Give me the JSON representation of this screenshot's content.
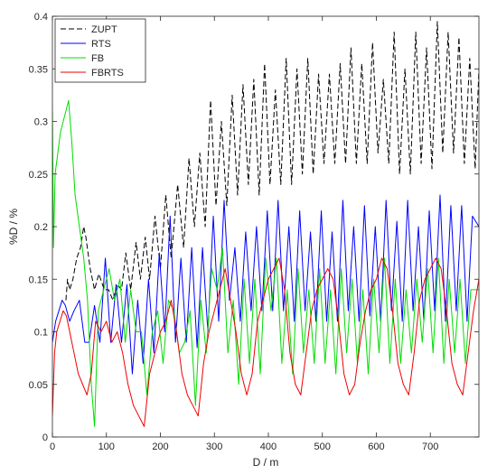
{
  "chart_data": {
    "type": "line",
    "title": "",
    "xlabel": "D / m",
    "ylabel": "%D / %",
    "xlim": [
      0,
      790
    ],
    "ylim": [
      0,
      0.4
    ],
    "x_ticks": [
      0,
      100,
      200,
      300,
      400,
      500,
      600,
      700
    ],
    "x_tick_labels": [
      "0",
      "100",
      "200",
      "300",
      "400",
      "500",
      "600",
      "700"
    ],
    "y_ticks": [
      0,
      0.05,
      0.1,
      0.15,
      0.2,
      0.25,
      0.3,
      0.35,
      0.4
    ],
    "y_tick_labels": [
      "0",
      "0.05",
      "0.1",
      "0.15",
      "0.2",
      "0.25",
      "0.3",
      "0.35",
      "0.4"
    ],
    "grid": false,
    "legend_position": "top-left",
    "series": [
      {
        "name": "ZUPT",
        "color": "#000000",
        "dash": "dashed",
        "x": [
          25,
          28,
          32,
          38,
          45,
          52,
          58,
          62,
          70,
          78,
          86,
          96,
          104,
          112,
          120,
          128,
          136,
          145,
          155,
          163,
          172,
          180,
          190,
          200,
          210,
          220,
          232,
          243,
          253,
          263,
          273,
          283,
          293,
          303,
          313,
          323,
          333,
          343,
          353,
          363,
          373,
          383,
          393,
          403,
          413,
          423,
          433,
          443,
          453,
          463,
          473,
          483,
          493,
          503,
          513,
          523,
          533,
          543,
          553,
          563,
          573,
          583,
          593,
          603,
          613,
          623,
          633,
          643,
          653,
          663,
          673,
          683,
          693,
          703,
          713,
          723,
          733,
          743,
          753,
          763,
          773,
          783,
          790
        ],
        "y": [
          0.13,
          0.15,
          0.14,
          0.15,
          0.17,
          0.18,
          0.2,
          0.19,
          0.16,
          0.14,
          0.155,
          0.14,
          0.14,
          0.13,
          0.145,
          0.14,
          0.175,
          0.14,
          0.185,
          0.15,
          0.19,
          0.15,
          0.21,
          0.16,
          0.23,
          0.17,
          0.24,
          0.18,
          0.265,
          0.2,
          0.27,
          0.2,
          0.32,
          0.22,
          0.3,
          0.22,
          0.325,
          0.23,
          0.335,
          0.24,
          0.34,
          0.23,
          0.355,
          0.24,
          0.33,
          0.24,
          0.36,
          0.24,
          0.35,
          0.25,
          0.36,
          0.25,
          0.345,
          0.26,
          0.345,
          0.26,
          0.355,
          0.26,
          0.37,
          0.26,
          0.355,
          0.26,
          0.375,
          0.27,
          0.34,
          0.26,
          0.385,
          0.25,
          0.35,
          0.25,
          0.385,
          0.26,
          0.37,
          0.255,
          0.395,
          0.27,
          0.385,
          0.27,
          0.38,
          0.26,
          0.36,
          0.255,
          0.35
        ]
      },
      {
        "name": "RTS",
        "color": "#0000ff",
        "dash": "solid",
        "x": [
          0,
          6,
          12,
          18,
          24,
          32,
          40,
          50,
          60,
          68,
          78,
          88,
          98,
          108,
          118,
          128,
          138,
          148,
          158,
          168,
          178,
          188,
          198,
          208,
          218,
          228,
          238,
          248,
          258,
          268,
          278,
          288,
          298,
          308,
          318,
          328,
          338,
          348,
          358,
          368,
          378,
          388,
          398,
          408,
          418,
          428,
          438,
          448,
          458,
          468,
          478,
          488,
          498,
          508,
          518,
          528,
          538,
          548,
          558,
          568,
          578,
          588,
          598,
          608,
          618,
          628,
          638,
          648,
          658,
          668,
          678,
          688,
          698,
          708,
          718,
          728,
          738,
          748,
          758,
          768,
          778,
          790
        ],
        "y": [
          0.09,
          0.11,
          0.12,
          0.13,
          0.125,
          0.11,
          0.12,
          0.13,
          0.09,
          0.09,
          0.125,
          0.09,
          0.17,
          0.09,
          0.145,
          0.09,
          0.145,
          0.06,
          0.13,
          0.07,
          0.15,
          0.08,
          0.175,
          0.1,
          0.21,
          0.09,
          0.17,
          0.09,
          0.18,
          0.085,
          0.18,
          0.1,
          0.21,
          0.11,
          0.225,
          0.13,
          0.18,
          0.11,
          0.195,
          0.12,
          0.2,
          0.12,
          0.215,
          0.12,
          0.225,
          0.12,
          0.2,
          0.11,
          0.215,
          0.12,
          0.195,
          0.11,
          0.215,
          0.11,
          0.195,
          0.11,
          0.225,
          0.12,
          0.2,
          0.11,
          0.22,
          0.115,
          0.2,
          0.11,
          0.225,
          0.12,
          0.205,
          0.11,
          0.225,
          0.12,
          0.2,
          0.11,
          0.215,
          0.12,
          0.23,
          0.11,
          0.22,
          0.12,
          0.22,
          0.11,
          0.21,
          0.2
        ]
      },
      {
        "name": "FB",
        "color": "#00dd00",
        "dash": "solid",
        "x": [
          0,
          2,
          5,
          10,
          15,
          20,
          25,
          30,
          36,
          42,
          50,
          58,
          65,
          72,
          78,
          85,
          95,
          105,
          115,
          125,
          135,
          145,
          155,
          165,
          175,
          185,
          195,
          205,
          215,
          225,
          235,
          245,
          255,
          265,
          275,
          285,
          295,
          305,
          315,
          325,
          335,
          345,
          355,
          365,
          375,
          385,
          395,
          405,
          415,
          425,
          435,
          445,
          455,
          465,
          475,
          485,
          495,
          505,
          515,
          525,
          535,
          545,
          555,
          565,
          575,
          585,
          595,
          605,
          615,
          625,
          635,
          645,
          655,
          665,
          675,
          685,
          695,
          705,
          715,
          725,
          735,
          745,
          755,
          765,
          775,
          790
        ],
        "y": [
          0.31,
          0.18,
          0.25,
          0.27,
          0.29,
          0.3,
          0.31,
          0.32,
          0.28,
          0.23,
          0.2,
          0.17,
          0.13,
          0.05,
          0.01,
          0.12,
          0.14,
          0.16,
          0.13,
          0.15,
          0.09,
          0.14,
          0.1,
          0.1,
          0.04,
          0.1,
          0.12,
          0.07,
          0.13,
          0.12,
          0.08,
          0.09,
          0.12,
          0.03,
          0.13,
          0.08,
          0.16,
          0.14,
          0.18,
          0.08,
          0.13,
          0.05,
          0.15,
          0.07,
          0.15,
          0.06,
          0.17,
          0.12,
          0.17,
          0.07,
          0.14,
          0.06,
          0.16,
          0.08,
          0.14,
          0.07,
          0.16,
          0.07,
          0.14,
          0.06,
          0.16,
          0.08,
          0.15,
          0.07,
          0.14,
          0.06,
          0.15,
          0.08,
          0.17,
          0.07,
          0.15,
          0.07,
          0.14,
          0.08,
          0.15,
          0.09,
          0.16,
          0.08,
          0.17,
          0.07,
          0.15,
          0.08,
          0.15,
          0.07,
          0.14,
          0.14
        ]
      },
      {
        "name": "FBRTS",
        "color": "#ee0000",
        "dash": "solid",
        "x": [
          0,
          4,
          8,
          14,
          20,
          26,
          32,
          40,
          48,
          56,
          64,
          72,
          80,
          90,
          100,
          110,
          120,
          130,
          140,
          150,
          160,
          170,
          180,
          190,
          200,
          210,
          220,
          230,
          240,
          250,
          260,
          270,
          280,
          290,
          300,
          310,
          320,
          330,
          340,
          350,
          360,
          370,
          380,
          390,
          400,
          410,
          420,
          430,
          440,
          450,
          460,
          470,
          480,
          490,
          500,
          510,
          520,
          530,
          540,
          550,
          560,
          570,
          580,
          590,
          600,
          610,
          620,
          630,
          640,
          650,
          660,
          670,
          680,
          690,
          700,
          710,
          720,
          730,
          740,
          750,
          760,
          770,
          780,
          790
        ],
        "y": [
          0.02,
          0.08,
          0.1,
          0.11,
          0.12,
          0.115,
          0.1,
          0.08,
          0.06,
          0.05,
          0.04,
          0.06,
          0.11,
          0.1,
          0.11,
          0.09,
          0.1,
          0.08,
          0.05,
          0.03,
          0.02,
          0.01,
          0.06,
          0.08,
          0.1,
          0.11,
          0.13,
          0.1,
          0.06,
          0.04,
          0.03,
          0.02,
          0.07,
          0.1,
          0.12,
          0.14,
          0.16,
          0.13,
          0.1,
          0.06,
          0.04,
          0.06,
          0.11,
          0.13,
          0.15,
          0.16,
          0.17,
          0.14,
          0.08,
          0.05,
          0.04,
          0.08,
          0.12,
          0.14,
          0.15,
          0.16,
          0.15,
          0.11,
          0.06,
          0.04,
          0.05,
          0.09,
          0.12,
          0.14,
          0.15,
          0.17,
          0.16,
          0.12,
          0.07,
          0.05,
          0.04,
          0.08,
          0.13,
          0.15,
          0.16,
          0.17,
          0.16,
          0.12,
          0.07,
          0.05,
          0.04,
          0.08,
          0.12,
          0.15
        ]
      }
    ]
  }
}
